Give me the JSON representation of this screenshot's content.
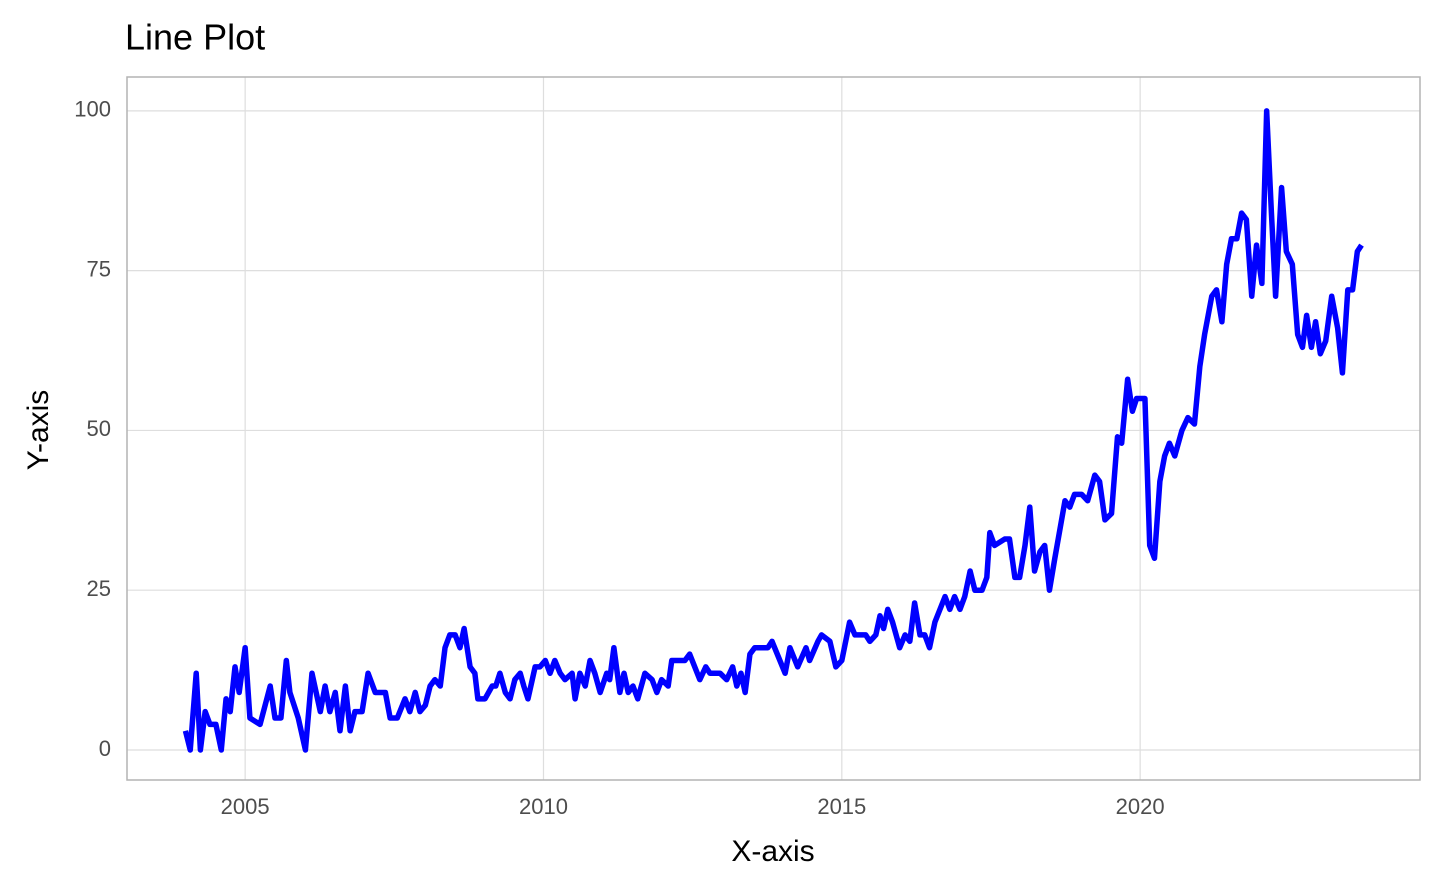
{
  "chart_data": {
    "type": "line",
    "title": "Line Plot",
    "x_label": "X-axis",
    "y_label": "Y-axis",
    "x": [
      2004.0,
      2004.08,
      2004.18,
      2004.25,
      2004.33,
      2004.41,
      2004.51,
      2004.6,
      2004.68,
      2004.75,
      2004.83,
      2004.9,
      2005.0,
      2005.08,
      2005.25,
      2005.42,
      2005.5,
      2005.6,
      2005.69,
      2005.75,
      2005.89,
      2006.01,
      2006.12,
      2006.26,
      2006.34,
      2006.42,
      2006.51,
      2006.59,
      2006.68,
      2006.76,
      2006.84,
      2006.96,
      2007.06,
      2007.18,
      2007.35,
      2007.43,
      2007.55,
      2007.68,
      2007.76,
      2007.85,
      2007.93,
      2008.02,
      2008.1,
      2008.18,
      2008.27,
      2008.35,
      2008.43,
      2008.52,
      2008.6,
      2008.67,
      2008.77,
      2008.85,
      2008.9,
      2009.02,
      2009.14,
      2009.2,
      2009.27,
      2009.36,
      2009.44,
      2009.52,
      2009.61,
      2009.67,
      2009.74,
      2009.86,
      2009.94,
      2010.03,
      2010.11,
      2010.19,
      2010.28,
      2010.36,
      2010.48,
      2010.53,
      2010.61,
      2010.7,
      2010.78,
      2010.86,
      2010.95,
      2011.06,
      2011.11,
      2011.18,
      2011.28,
      2011.35,
      2011.42,
      2011.5,
      2011.58,
      2011.7,
      2011.82,
      2011.9,
      2011.98,
      2012.09,
      2012.15,
      2012.37,
      2012.45,
      2012.62,
      2012.72,
      2012.79,
      2012.96,
      2013.07,
      2013.17,
      2013.24,
      2013.31,
      2013.38,
      2013.46,
      2013.54,
      2013.76,
      2013.83,
      2014.05,
      2014.13,
      2014.26,
      2014.4,
      2014.46,
      2014.6,
      2014.66,
      2014.8,
      2014.9,
      2015.0,
      2015.13,
      2015.22,
      2015.4,
      2015.47,
      2015.57,
      2015.64,
      2015.7,
      2015.77,
      2015.85,
      2015.97,
      2016.06,
      2016.14,
      2016.22,
      2016.31,
      2016.39,
      2016.47,
      2016.56,
      2016.73,
      2016.81,
      2016.89,
      2016.98,
      2017.06,
      2017.15,
      2017.23,
      2017.35,
      2017.43,
      2017.48,
      2017.56,
      2017.73,
      2017.81,
      2017.9,
      2017.98,
      2018.07,
      2018.15,
      2018.23,
      2018.32,
      2018.4,
      2018.48,
      2018.57,
      2018.74,
      2018.82,
      2018.9,
      2019.02,
      2019.12,
      2019.24,
      2019.32,
      2019.41,
      2019.52,
      2019.62,
      2019.69,
      2019.79,
      2019.87,
      2019.94,
      2020.08,
      2020.16,
      2020.24,
      2020.33,
      2020.41,
      2020.49,
      2020.58,
      2020.7,
      2020.8,
      2020.91,
      2021.0,
      2021.08,
      2021.2,
      2021.28,
      2021.37,
      2021.45,
      2021.53,
      2021.62,
      2021.7,
      2021.78,
      2021.87,
      2021.95,
      2022.04,
      2022.12,
      2022.2,
      2022.27,
      2022.37,
      2022.45,
      2022.55,
      2022.64,
      2022.72,
      2022.79,
      2022.87,
      2022.94,
      2023.02,
      2023.11,
      2023.21,
      2023.31,
      2023.39,
      2023.48,
      2023.56,
      2023.64,
      2023.71
    ],
    "values": [
      3,
      0,
      12,
      0,
      6,
      4,
      4,
      0,
      8,
      6,
      13,
      9,
      16,
      5,
      4,
      10,
      5,
      5,
      14,
      9,
      5,
      0,
      12,
      6,
      10,
      6,
      9,
      3,
      10,
      3,
      6,
      6,
      12,
      9,
      9,
      5,
      5,
      8,
      6,
      9,
      6,
      7,
      10,
      11,
      10,
      16,
      18,
      18,
      16,
      19,
      13,
      12,
      8,
      8,
      10,
      10,
      12,
      9,
      8,
      11,
      12,
      10,
      8,
      13,
      13,
      14,
      12,
      14,
      12,
      11,
      12,
      8,
      12,
      10,
      14,
      12,
      9,
      12,
      11,
      16,
      9,
      12,
      9,
      10,
      8,
      12,
      11,
      9,
      11,
      10,
      14,
      14,
      15,
      11,
      13,
      12,
      12,
      11,
      13,
      10,
      12,
      9,
      15,
      16,
      16,
      17,
      12,
      16,
      13,
      16,
      14,
      17,
      18,
      17,
      13,
      14,
      20,
      18,
      18,
      17,
      18,
      21,
      19,
      22,
      20,
      16,
      18,
      17,
      23,
      18,
      18,
      16,
      20,
      24,
      22,
      24,
      22,
      24,
      28,
      25,
      25,
      27,
      34,
      32,
      33,
      33,
      27,
      27,
      32,
      38,
      28,
      31,
      32,
      25,
      30,
      39,
      38,
      40,
      40,
      39,
      43,
      42,
      36,
      37,
      49,
      48,
      58,
      53,
      55,
      55,
      32,
      30,
      42,
      46,
      48,
      46,
      50,
      52,
      51,
      60,
      65,
      71,
      72,
      67,
      76,
      80,
      80,
      84,
      83,
      71,
      79,
      73,
      100,
      84,
      71,
      88,
      78,
      76,
      65,
      63,
      68,
      63,
      67,
      62,
      64,
      71,
      66,
      59,
      72,
      72,
      78,
      79
    ],
    "color": "#0000ff",
    "xlim": [
      2003.02,
      2024.69
    ],
    "xticks": [
      2005,
      2010,
      2015,
      2020
    ],
    "ylim": [
      -4.7,
      105.3
    ],
    "yticks": [
      0,
      25,
      50,
      75,
      100
    ],
    "grid": true
  }
}
